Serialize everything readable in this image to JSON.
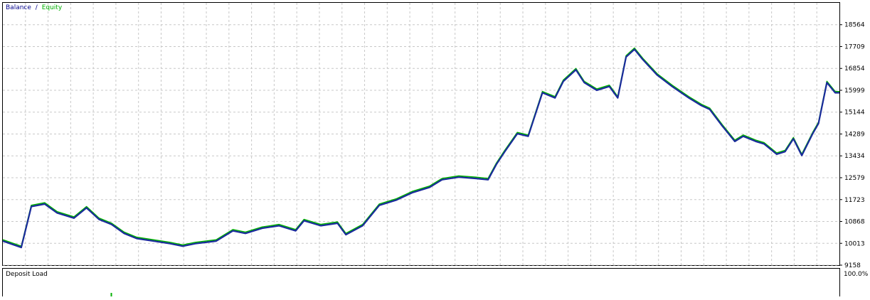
{
  "legend": {
    "balance_label": "Balance",
    "separator": "/",
    "equity_label": "Equity",
    "balance_color": "#00008b",
    "equity_color": "#00b000"
  },
  "deposit_panel": {
    "title": "Deposit Load",
    "max_label": "100.0%"
  },
  "colors": {
    "background": "#ffffff",
    "frame": "#000000",
    "grid": "#c8c8c8",
    "balance": "#1a2a9c",
    "equity": "#00b000"
  },
  "chart_data": {
    "type": "line",
    "title": "",
    "xlabel": "",
    "ylabel": "",
    "grid": true,
    "legend_position": "top-left",
    "ylim": [
      9158,
      19419
    ],
    "y_ticks": [
      "18564",
      "17709",
      "16854",
      "15999",
      "15144",
      "14289",
      "13434",
      "12579",
      "11723",
      "10868",
      "10013",
      "9158"
    ],
    "x": [
      0,
      0.022,
      0.034,
      0.05,
      0.065,
      0.085,
      0.1,
      0.115,
      0.13,
      0.145,
      0.16,
      0.18,
      0.2,
      0.215,
      0.23,
      0.255,
      0.275,
      0.29,
      0.31,
      0.33,
      0.35,
      0.36,
      0.38,
      0.4,
      0.41,
      0.43,
      0.45,
      0.47,
      0.49,
      0.51,
      0.525,
      0.545,
      0.565,
      0.58,
      0.59,
      0.6,
      0.615,
      0.628,
      0.645,
      0.66,
      0.67,
      0.685,
      0.695,
      0.71,
      0.725,
      0.735,
      0.745,
      0.755,
      0.765,
      0.782,
      0.8,
      0.82,
      0.835,
      0.845,
      0.86,
      0.875,
      0.885,
      0.9,
      0.91,
      0.925,
      0.935,
      0.945,
      0.955,
      0.968,
      0.975,
      0.985,
      0.995,
      1.0
    ],
    "series": [
      {
        "name": "Balance",
        "values": [
          10100,
          9850,
          11450,
          11550,
          11200,
          11000,
          11400,
          10950,
          10750,
          10400,
          10200,
          10100,
          10000,
          9900,
          10000,
          10100,
          10500,
          10400,
          10600,
          10700,
          10500,
          10900,
          10700,
          10800,
          10350,
          10700,
          11500,
          11700,
          12000,
          12200,
          12500,
          12600,
          12550,
          12500,
          13100,
          13600,
          14300,
          14200,
          15900,
          15700,
          16350,
          16800,
          16300,
          16000,
          16150,
          15700,
          17300,
          17600,
          17200,
          16600,
          16150,
          15700,
          15400,
          15250,
          14600,
          14000,
          14200,
          14000,
          13900,
          13500,
          13600,
          14100,
          13450,
          14300,
          14700,
          16300,
          15900,
          15900
        ]
      },
      {
        "name": "Equity",
        "values": [
          10150,
          9900,
          11500,
          11600,
          11250,
          11050,
          11450,
          11000,
          10800,
          10450,
          10250,
          10150,
          10050,
          9950,
          10050,
          10150,
          10550,
          10450,
          10650,
          10750,
          10550,
          10950,
          10750,
          10850,
          10400,
          10750,
          11550,
          11750,
          12050,
          12250,
          12550,
          12650,
          12600,
          12550,
          13150,
          13650,
          14350,
          14250,
          15950,
          15750,
          16400,
          16850,
          16350,
          16050,
          16200,
          15750,
          17350,
          17650,
          17250,
          16650,
          16200,
          15750,
          15450,
          15300,
          14650,
          14050,
          14250,
          14050,
          13950,
          13550,
          13650,
          14150,
          13500,
          14350,
          14750,
          16350,
          15950,
          15950
        ]
      }
    ]
  }
}
